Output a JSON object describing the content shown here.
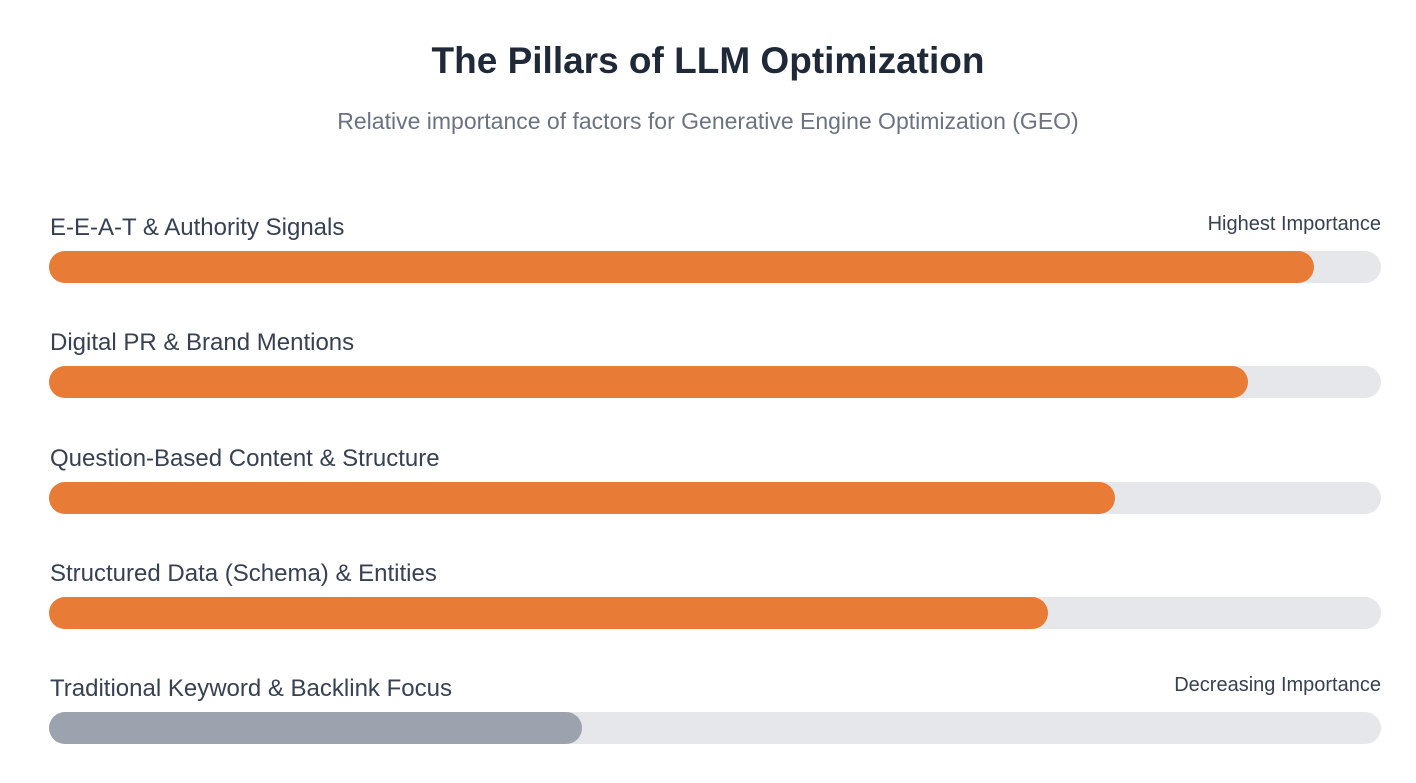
{
  "chart_data": {
    "type": "bar",
    "orientation": "horizontal",
    "title": "The Pillars of LLM Optimization",
    "subtitle": "Relative importance of factors for Generative Engine Optimization (GEO)",
    "categories": [
      "E-E-A-T & Authority Signals",
      "Digital PR & Brand Mentions",
      "Question-Based Content & Structure",
      "Structured Data (Schema) & Entities",
      "Traditional Keyword & Backlink Focus"
    ],
    "values": [
      95,
      90,
      80,
      75,
      40
    ],
    "xlim": [
      0,
      100
    ],
    "annotations": [
      {
        "category": "E-E-A-T & Authority Signals",
        "text": "Highest Importance"
      },
      {
        "category": "Traditional Keyword & Backlink Focus",
        "text": "Decreasing Importance"
      }
    ],
    "colors": [
      "#e87b35",
      "#e87b35",
      "#e87b35",
      "#e87b35",
      "#9ca3af"
    ],
    "track_color": "#e5e7eb",
    "grid": false
  }
}
